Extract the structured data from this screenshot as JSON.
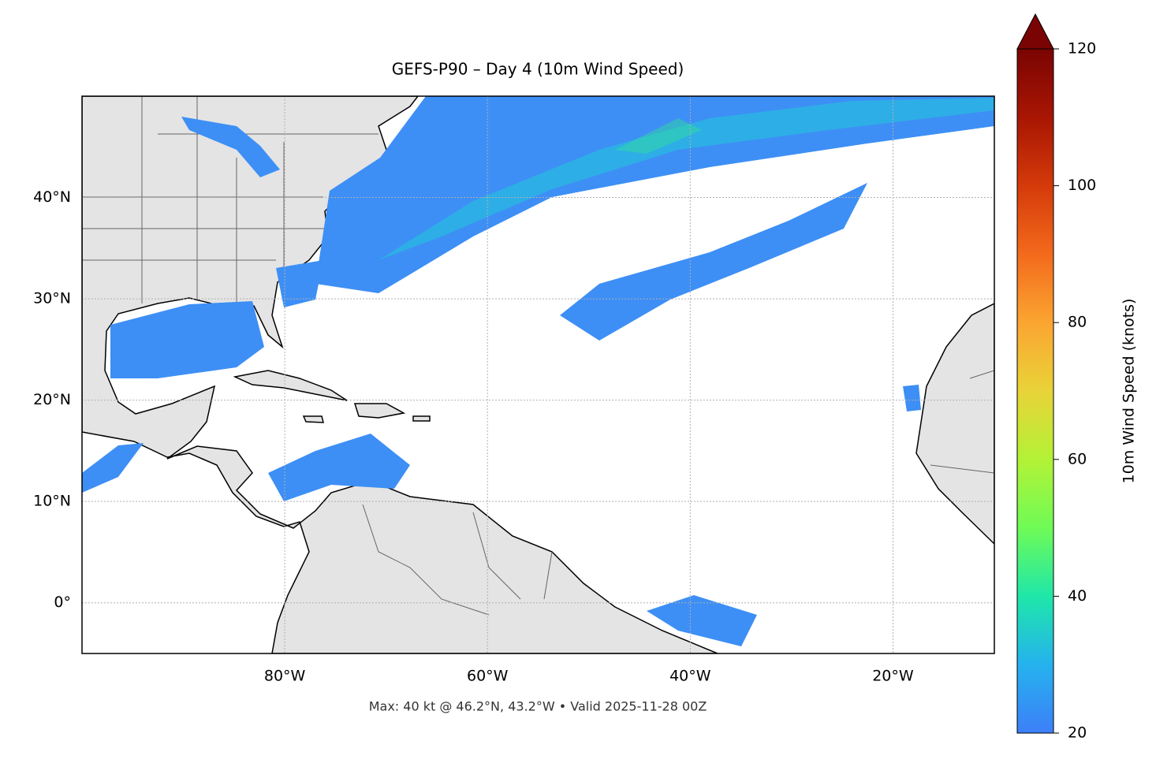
{
  "map": {
    "title": "GEFS-P90 – Day 4 (10m Wind Speed)",
    "xlim": [
      -100,
      -10
    ],
    "ylim": [
      -5,
      50
    ],
    "xticks": [
      {
        "value": -80,
        "label": "80°W"
      },
      {
        "value": -60,
        "label": "60°W"
      },
      {
        "value": -40,
        "label": "40°W"
      },
      {
        "value": -20,
        "label": "20°W"
      }
    ],
    "yticks": [
      {
        "value": 0,
        "label": "0°"
      },
      {
        "value": 10,
        "label": "10°N"
      },
      {
        "value": 20,
        "label": "20°N"
      },
      {
        "value": 30,
        "label": "30°N"
      },
      {
        "value": 40,
        "label": "40°N"
      }
    ],
    "grid": true,
    "colorbar": {
      "label": "10m Wind Speed (knots)",
      "lim": [
        20,
        120
      ],
      "ticks": [
        20,
        40,
        60,
        80,
        100,
        120
      ]
    },
    "footer": "Max: 40 kt @ 46.2°N, 43.2°W • Valid 2025-11-28 00Z"
  }
}
